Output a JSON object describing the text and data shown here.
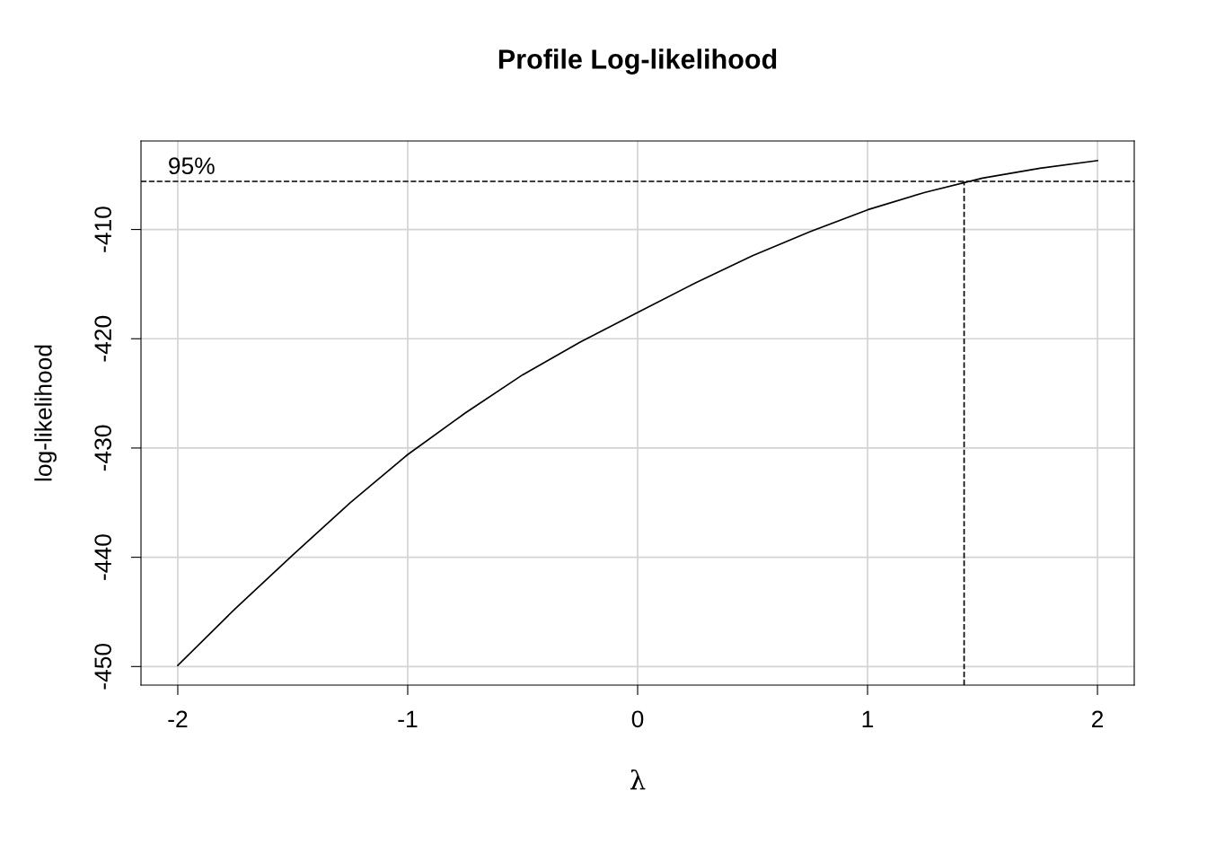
{
  "chart_data": {
    "type": "line",
    "title": "Profile Log-likelihood",
    "xlabel": "λ",
    "ylabel": "log-likelihood",
    "x": [
      -2,
      -1.75,
      -1.5,
      -1.25,
      -1,
      -0.75,
      -0.5,
      -0.25,
      0,
      0.25,
      0.5,
      0.75,
      1,
      1.25,
      1.5,
      1.75,
      2
    ],
    "series": [
      {
        "color": "#000000",
        "values": [
          -449.9,
          -444.7,
          -439.8,
          -435.0,
          -430.6,
          -426.8,
          -423.3,
          -420.3,
          -417.6,
          -414.9,
          -412.4,
          -410.2,
          -408.2,
          -406.6,
          -405.3,
          -404.4,
          -403.7
        ]
      }
    ],
    "xlim": [
      -2.16,
      2.16
    ],
    "ylim": [
      -451.7,
      -401.9
    ],
    "xticks": [
      -2,
      -1,
      0,
      1,
      2
    ],
    "yticks": [
      -450,
      -440,
      -430,
      -420,
      -410
    ],
    "ref_lines": [
      {
        "axis": "y",
        "value": -405.6,
        "line_style": "dashed",
        "color": "#000000"
      },
      {
        "axis": "x",
        "value": 1.42,
        "line_style": "dashed",
        "color": "#000000"
      }
    ],
    "annotations": [
      {
        "text": "95%",
        "x": -2,
        "y": -405.6
      }
    ],
    "grid": true,
    "line_style": "solid",
    "marker": "none"
  }
}
